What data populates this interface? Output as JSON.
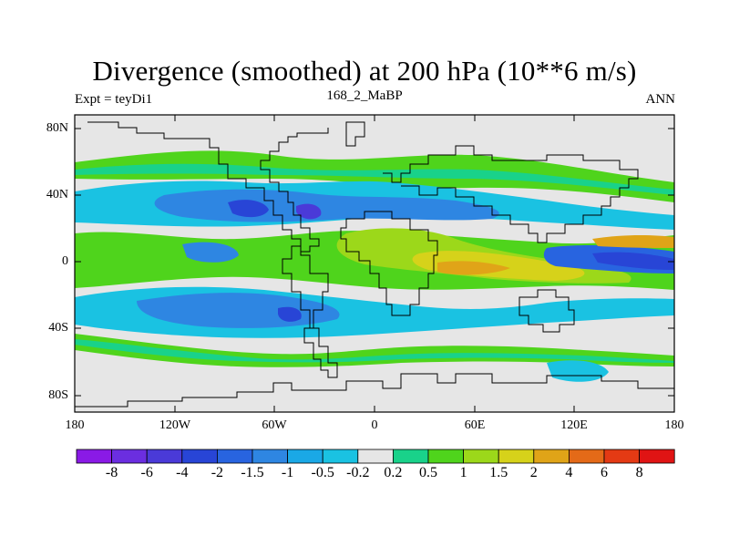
{
  "title": "Divergence (smoothed) at 200 hPa (10**6 m/s)",
  "left_string": "Expt = teyDi1",
  "center_string": "168_2_MaBP",
  "right_string": "ANN",
  "y_ticks": [
    "80N",
    "40N",
    "0",
    "40S",
    "80S"
  ],
  "x_ticks": [
    "180",
    "120W",
    "60W",
    "0",
    "60E",
    "120E",
    "180"
  ],
  "colorbar": {
    "labels": [
      "-8",
      "-6",
      "-4",
      "-2",
      "-1.5",
      "-1",
      "-0.5",
      "-0.2",
      "0.2",
      "0.5",
      "1",
      "1.5",
      "2",
      "4",
      "6",
      "8"
    ],
    "colors": [
      "#8a1ae6",
      "#6b2ee0",
      "#4a3ad8",
      "#2845d6",
      "#2864e0",
      "#2e86e2",
      "#1aa8e6",
      "#1ac2e2",
      "#e6e6e6",
      "#19d28a",
      "#4fd41c",
      "#9cd81a",
      "#d6d21a",
      "#e0a418",
      "#e46a18",
      "#e43a14",
      "#e01414"
    ]
  },
  "colors": {
    "background": "#e6e6e6",
    "coastline": "#000000"
  }
}
